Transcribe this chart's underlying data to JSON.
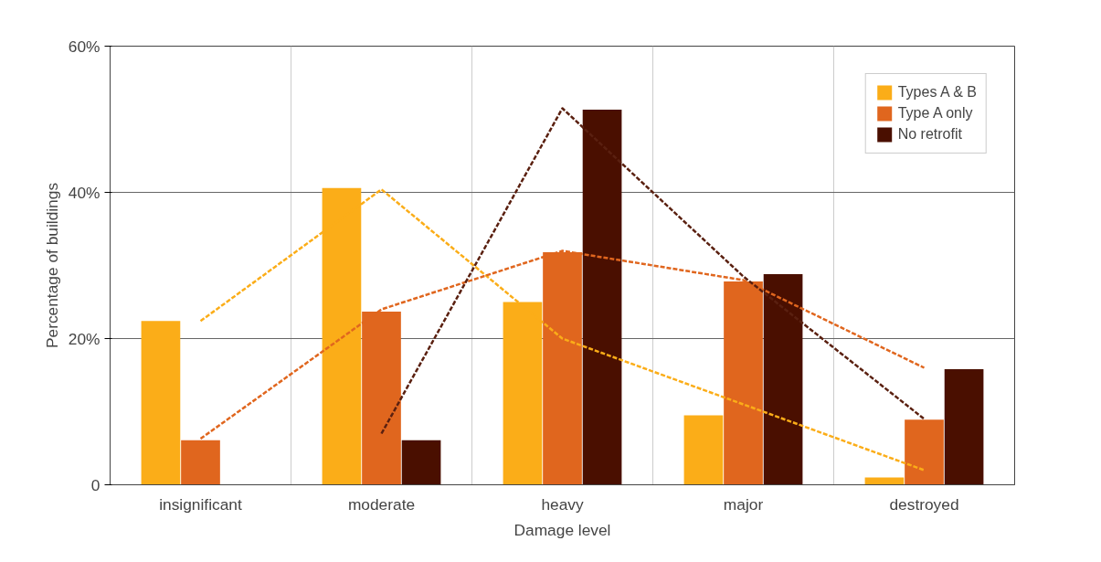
{
  "chart_data": {
    "type": "bar",
    "xlabel": "Damage level",
    "ylabel": "Percentage of buildings",
    "categories": [
      "insignificant",
      "moderate",
      "heavy",
      "major",
      "destroyed"
    ],
    "series": [
      {
        "name": "Types A & B",
        "color": "#fbad18",
        "values": [
          22.4,
          40.6,
          25.0,
          9.5,
          1.0
        ]
      },
      {
        "name": "Type A only",
        "color": "#e0661e",
        "values": [
          6.1,
          23.7,
          31.8,
          27.8,
          8.9
        ]
      },
      {
        "name": "No retrofit",
        "color": "#4a0f00",
        "values": [
          null,
          6.1,
          51.3,
          28.8,
          15.8
        ]
      },
      {
        "type": "line",
        "color": "#fbad18",
        "line_style": "dashed",
        "values": [
          22.4,
          40.4,
          20.0,
          11.0,
          2.0
        ]
      },
      {
        "type": "line",
        "color": "#e0661e",
        "line_style": "dashed",
        "values": [
          6.3,
          24.0,
          32.0,
          28.0,
          16.0
        ]
      },
      {
        "type": "line",
        "color": "#5a2010",
        "line_style": "dashed",
        "values": [
          null,
          7.0,
          51.5,
          28.5,
          9.0
        ]
      }
    ],
    "ylim": [
      0,
      60
    ],
    "yticks": [
      0,
      {
        "value": 20,
        "label": "20%"
      },
      {
        "value": 40,
        "label": "40%"
      },
      {
        "value": 60,
        "label": "60%"
      }
    ],
    "grid": true,
    "legend": "top right"
  }
}
